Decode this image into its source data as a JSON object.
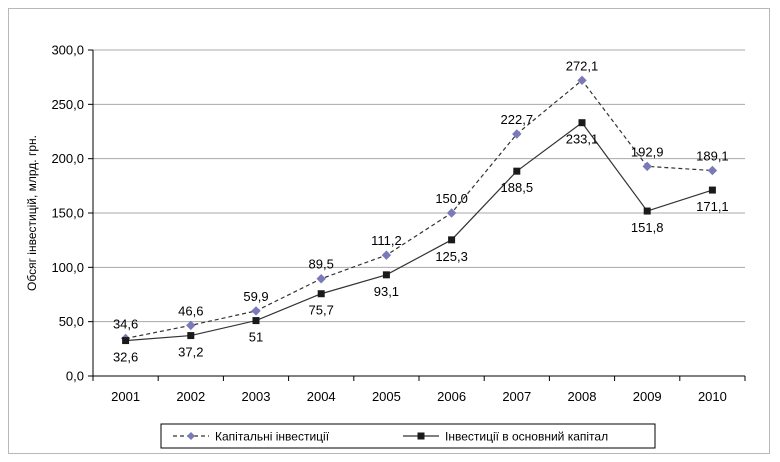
{
  "chart_data": {
    "type": "line",
    "title": "",
    "xlabel": "",
    "ylabel": "Обсяг інвестицій, млрд. грн.",
    "ylim": [
      0,
      300
    ],
    "yticks": [
      "0,0",
      "50,0",
      "100,0",
      "150,0",
      "200,0",
      "250,0",
      "300,0"
    ],
    "categories": [
      "2001",
      "2002",
      "2003",
      "2004",
      "2005",
      "2006",
      "2007",
      "2008",
      "2009",
      "2010"
    ],
    "grid": "horizontal",
    "legend_position": "bottom",
    "series": [
      {
        "name": "Капітальні інвестиції",
        "style": "dashed",
        "marker": "diamond",
        "color": "#7a7ab8",
        "line_color": "#333333",
        "values": [
          34.6,
          46.6,
          59.9,
          89.5,
          111.2,
          150.0,
          222.7,
          272.1,
          192.9,
          189.1
        ],
        "labels": [
          "34,6",
          "46,6",
          "59,9",
          "89,5",
          "111,2",
          "150,0",
          "222,7",
          "272,1",
          "192,9",
          "189,1"
        ]
      },
      {
        "name": "Інвестиції в основний капітал",
        "style": "solid",
        "marker": "square",
        "color": "#1a1a1a",
        "line_color": "#333333",
        "values": [
          32.6,
          37.2,
          51,
          75.7,
          93.1,
          125.3,
          188.5,
          233.1,
          151.8,
          171.1
        ],
        "labels": [
          "32,6",
          "37,2",
          "51",
          "75,7",
          "93,1",
          "125,3",
          "188,5",
          "233,1",
          "151,8",
          "171,1"
        ]
      }
    ]
  }
}
